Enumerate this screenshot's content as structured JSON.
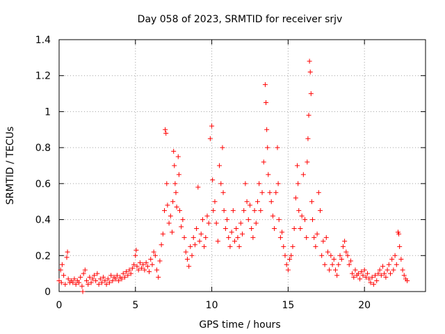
{
  "chart_data": {
    "type": "scatter",
    "title": "Day 058 of 2023, SRMTID for receiver srjv",
    "xlabel": "GPS time / hours",
    "ylabel": "SRMTID / TECUs",
    "xlim": [
      0,
      24
    ],
    "ylim": [
      0,
      1.4
    ],
    "xticks": [
      0,
      5,
      10,
      15,
      20
    ],
    "yticks": [
      0,
      0.2,
      0.4,
      0.6,
      0.8,
      1,
      1.2,
      1.4
    ],
    "grid": true,
    "marker": "+",
    "series": [
      {
        "name": "SRMTID",
        "color": "#ff0000",
        "points": [
          [
            0.0,
            0.06
          ],
          [
            0.1,
            0.12
          ],
          [
            0.15,
            0.05
          ],
          [
            0.2,
            0.15
          ],
          [
            0.3,
            0.09
          ],
          [
            0.4,
            0.04
          ],
          [
            0.5,
            0.19
          ],
          [
            0.55,
            0.22
          ],
          [
            0.6,
            0.07
          ],
          [
            0.7,
            0.05
          ],
          [
            0.8,
            0.06
          ],
          [
            0.9,
            0.05
          ],
          [
            1.0,
            0.07
          ],
          [
            1.1,
            0.04
          ],
          [
            1.2,
            0.06
          ],
          [
            1.3,
            0.05
          ],
          [
            1.4,
            0.08
          ],
          [
            1.5,
            0.03
          ],
          [
            1.55,
            0.0
          ],
          [
            1.6,
            0.1
          ],
          [
            1.7,
            0.12
          ],
          [
            1.8,
            0.06
          ],
          [
            1.9,
            0.04
          ],
          [
            2.0,
            0.08
          ],
          [
            2.1,
            0.05
          ],
          [
            2.2,
            0.07
          ],
          [
            2.3,
            0.09
          ],
          [
            2.4,
            0.06
          ],
          [
            2.5,
            0.1
          ],
          [
            2.6,
            0.04
          ],
          [
            2.7,
            0.07
          ],
          [
            2.8,
            0.05
          ],
          [
            2.9,
            0.08
          ],
          [
            3.0,
            0.06
          ],
          [
            3.1,
            0.04
          ],
          [
            3.2,
            0.07
          ],
          [
            3.3,
            0.05
          ],
          [
            3.4,
            0.09
          ],
          [
            3.5,
            0.06
          ],
          [
            3.6,
            0.08
          ],
          [
            3.7,
            0.07
          ],
          [
            3.8,
            0.09
          ],
          [
            3.9,
            0.06
          ],
          [
            4.0,
            0.08
          ],
          [
            4.1,
            0.07
          ],
          [
            4.2,
            0.1
          ],
          [
            4.3,
            0.08
          ],
          [
            4.4,
            0.11
          ],
          [
            4.5,
            0.09
          ],
          [
            4.6,
            0.12
          ],
          [
            4.7,
            0.1
          ],
          [
            4.8,
            0.13
          ],
          [
            4.9,
            0.15
          ],
          [
            5.0,
            0.2
          ],
          [
            5.05,
            0.23
          ],
          [
            5.1,
            0.14
          ],
          [
            5.2,
            0.12
          ],
          [
            5.3,
            0.16
          ],
          [
            5.4,
            0.13
          ],
          [
            5.5,
            0.15
          ],
          [
            5.6,
            0.12
          ],
          [
            5.7,
            0.16
          ],
          [
            5.8,
            0.14
          ],
          [
            5.9,
            0.11
          ],
          [
            6.0,
            0.18
          ],
          [
            6.1,
            0.15
          ],
          [
            6.2,
            0.22
          ],
          [
            6.3,
            0.2
          ],
          [
            6.4,
            0.12
          ],
          [
            6.5,
            0.08
          ],
          [
            6.6,
            0.17
          ],
          [
            6.7,
            0.26
          ],
          [
            6.8,
            0.32
          ],
          [
            6.9,
            0.45
          ],
          [
            6.95,
            0.9
          ],
          [
            7.0,
            0.88
          ],
          [
            7.05,
            0.6
          ],
          [
            7.1,
            0.48
          ],
          [
            7.2,
            0.38
          ],
          [
            7.3,
            0.42
          ],
          [
            7.4,
            0.33
          ],
          [
            7.45,
            0.5
          ],
          [
            7.5,
            0.78
          ],
          [
            7.55,
            0.7
          ],
          [
            7.6,
            0.6
          ],
          [
            7.65,
            0.55
          ],
          [
            7.7,
            0.47
          ],
          [
            7.8,
            0.75
          ],
          [
            7.85,
            0.65
          ],
          [
            7.9,
            0.45
          ],
          [
            8.0,
            0.36
          ],
          [
            8.1,
            0.4
          ],
          [
            8.2,
            0.3
          ],
          [
            8.3,
            0.22
          ],
          [
            8.4,
            0.18
          ],
          [
            8.5,
            0.14
          ],
          [
            8.6,
            0.25
          ],
          [
            8.7,
            0.2
          ],
          [
            8.8,
            0.3
          ],
          [
            8.9,
            0.26
          ],
          [
            9.0,
            0.35
          ],
          [
            9.1,
            0.58
          ],
          [
            9.2,
            0.28
          ],
          [
            9.3,
            0.32
          ],
          [
            9.4,
            0.4
          ],
          [
            9.5,
            0.25
          ],
          [
            9.6,
            0.3
          ],
          [
            9.7,
            0.42
          ],
          [
            9.8,
            0.38
          ],
          [
            9.9,
            0.85
          ],
          [
            10.0,
            0.92
          ],
          [
            10.05,
            0.62
          ],
          [
            10.1,
            0.45
          ],
          [
            10.2,
            0.5
          ],
          [
            10.3,
            0.38
          ],
          [
            10.4,
            0.28
          ],
          [
            10.5,
            0.7
          ],
          [
            10.6,
            0.6
          ],
          [
            10.7,
            0.8
          ],
          [
            10.75,
            0.55
          ],
          [
            10.8,
            0.45
          ],
          [
            10.9,
            0.35
          ],
          [
            11.0,
            0.4
          ],
          [
            11.1,
            0.3
          ],
          [
            11.2,
            0.25
          ],
          [
            11.3,
            0.33
          ],
          [
            11.4,
            0.45
          ],
          [
            11.5,
            0.28
          ],
          [
            11.6,
            0.35
          ],
          [
            11.7,
            0.3
          ],
          [
            11.8,
            0.25
          ],
          [
            11.9,
            0.38
          ],
          [
            12.0,
            0.32
          ],
          [
            12.1,
            0.45
          ],
          [
            12.2,
            0.6
          ],
          [
            12.3,
            0.5
          ],
          [
            12.4,
            0.4
          ],
          [
            12.5,
            0.48
          ],
          [
            12.6,
            0.35
          ],
          [
            12.7,
            0.3
          ],
          [
            12.8,
            0.45
          ],
          [
            12.9,
            0.38
          ],
          [
            13.0,
            0.5
          ],
          [
            13.1,
            0.6
          ],
          [
            13.2,
            0.45
          ],
          [
            13.3,
            0.55
          ],
          [
            13.4,
            0.72
          ],
          [
            13.5,
            1.15
          ],
          [
            13.55,
            1.05
          ],
          [
            13.6,
            0.9
          ],
          [
            13.65,
            0.8
          ],
          [
            13.7,
            0.65
          ],
          [
            13.8,
            0.55
          ],
          [
            13.9,
            0.5
          ],
          [
            14.0,
            0.42
          ],
          [
            14.1,
            0.35
          ],
          [
            14.2,
            0.55
          ],
          [
            14.3,
            0.8
          ],
          [
            14.35,
            0.6
          ],
          [
            14.4,
            0.4
          ],
          [
            14.5,
            0.3
          ],
          [
            14.6,
            0.33
          ],
          [
            14.7,
            0.25
          ],
          [
            14.8,
            0.2
          ],
          [
            14.9,
            0.15
          ],
          [
            15.0,
            0.12
          ],
          [
            15.1,
            0.18
          ],
          [
            15.2,
            0.2
          ],
          [
            15.3,
            0.25
          ],
          [
            15.4,
            0.35
          ],
          [
            15.5,
            0.52
          ],
          [
            15.6,
            0.7
          ],
          [
            15.65,
            0.6
          ],
          [
            15.7,
            0.45
          ],
          [
            15.8,
            0.35
          ],
          [
            15.9,
            0.42
          ],
          [
            16.0,
            0.65
          ],
          [
            16.1,
            0.4
          ],
          [
            16.2,
            0.3
          ],
          [
            16.25,
            0.72
          ],
          [
            16.3,
            0.85
          ],
          [
            16.35,
            0.98
          ],
          [
            16.4,
            1.28
          ],
          [
            16.45,
            1.22
          ],
          [
            16.5,
            1.1
          ],
          [
            16.55,
            0.5
          ],
          [
            16.6,
            0.4
          ],
          [
            16.7,
            0.3
          ],
          [
            16.8,
            0.25
          ],
          [
            16.9,
            0.32
          ],
          [
            17.0,
            0.55
          ],
          [
            17.1,
            0.45
          ],
          [
            17.2,
            0.2
          ],
          [
            17.3,
            0.28
          ],
          [
            17.4,
            0.15
          ],
          [
            17.5,
            0.3
          ],
          [
            17.6,
            0.22
          ],
          [
            17.7,
            0.12
          ],
          [
            17.8,
            0.2
          ],
          [
            17.9,
            0.15
          ],
          [
            18.0,
            0.18
          ],
          [
            18.1,
            0.12
          ],
          [
            18.2,
            0.09
          ],
          [
            18.3,
            0.15
          ],
          [
            18.4,
            0.2
          ],
          [
            18.5,
            0.18
          ],
          [
            18.6,
            0.25
          ],
          [
            18.7,
            0.28
          ],
          [
            18.8,
            0.22
          ],
          [
            18.9,
            0.2
          ],
          [
            19.0,
            0.15
          ],
          [
            19.1,
            0.17
          ],
          [
            19.2,
            0.1
          ],
          [
            19.3,
            0.08
          ],
          [
            19.4,
            0.12
          ],
          [
            19.5,
            0.09
          ],
          [
            19.6,
            0.1
          ],
          [
            19.7,
            0.07
          ],
          [
            19.8,
            0.11
          ],
          [
            19.9,
            0.09
          ],
          [
            20.0,
            0.12
          ],
          [
            20.1,
            0.08
          ],
          [
            20.2,
            0.1
          ],
          [
            20.3,
            0.07
          ],
          [
            20.4,
            0.05
          ],
          [
            20.5,
            0.08
          ],
          [
            20.6,
            0.04
          ],
          [
            20.7,
            0.09
          ],
          [
            20.8,
            0.06
          ],
          [
            20.9,
            0.1
          ],
          [
            21.0,
            0.12
          ],
          [
            21.1,
            0.09
          ],
          [
            21.2,
            0.14
          ],
          [
            21.3,
            0.1
          ],
          [
            21.4,
            0.08
          ],
          [
            21.5,
            0.12
          ],
          [
            21.6,
            0.15
          ],
          [
            21.7,
            0.1
          ],
          [
            21.8,
            0.18
          ],
          [
            21.9,
            0.12
          ],
          [
            22.0,
            0.2
          ],
          [
            22.1,
            0.15
          ],
          [
            22.2,
            0.33
          ],
          [
            22.25,
            0.32
          ],
          [
            22.3,
            0.25
          ],
          [
            22.4,
            0.18
          ],
          [
            22.5,
            0.12
          ],
          [
            22.6,
            0.09
          ],
          [
            22.7,
            0.07
          ],
          [
            22.8,
            0.06
          ]
        ]
      }
    ]
  }
}
